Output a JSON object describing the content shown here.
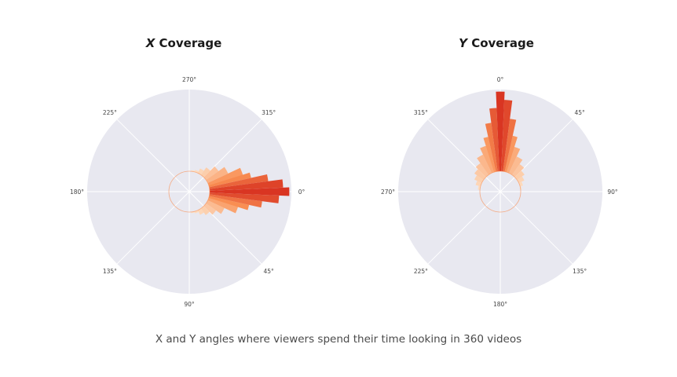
{
  "colors": {
    "plot_background": "#e8e8f0",
    "gridline": "#ffffff",
    "low": "#fde0c5",
    "mid": "#f98e52",
    "high": "#d7301f"
  },
  "caption": "X and Y angles where viewers spend their time looking in 360 videos",
  "chart_data": [
    {
      "type": "polar-bar",
      "title_axis": "X",
      "title_rest": " Coverage",
      "tick_labels": [
        "0°",
        "45°",
        "90°",
        "135°",
        "180°",
        "225°",
        "270°",
        "315°"
      ],
      "tick_angles_deg": [
        0,
        45,
        90,
        135,
        180,
        225,
        270,
        315
      ],
      "direction": "clockwise",
      "zero_location": "right",
      "grid": true,
      "radius_range": [
        0,
        1
      ],
      "base_radius": 0.2,
      "series": [
        {
          "angles_deg": [
            -90,
            -80,
            -70,
            -60,
            -50,
            -40,
            -30,
            -20,
            -15,
            -10,
            -5,
            0,
            5,
            10,
            15,
            20,
            30,
            40,
            50,
            60,
            70,
            80,
            90
          ],
          "values": [
            0.2,
            0.21,
            0.22,
            0.25,
            0.29,
            0.35,
            0.42,
            0.55,
            0.62,
            0.78,
            0.92,
            0.98,
            0.88,
            0.72,
            0.6,
            0.5,
            0.38,
            0.32,
            0.28,
            0.25,
            0.22,
            0.21,
            0.2
          ]
        }
      ]
    },
    {
      "type": "polar-bar",
      "title_axis": "Y",
      "title_rest": " Coverage",
      "tick_labels": [
        "0°",
        "45°",
        "90°",
        "135°",
        "180°",
        "225°",
        "270°",
        "315°"
      ],
      "tick_angles_deg": [
        0,
        45,
        90,
        135,
        180,
        225,
        270,
        315
      ],
      "direction": "clockwise",
      "zero_location": "top",
      "grid": true,
      "radius_range": [
        0,
        1
      ],
      "base_radius": 0.2,
      "series": [
        {
          "angles_deg": [
            -90,
            -80,
            -70,
            -60,
            -50,
            -40,
            -30,
            -20,
            -15,
            -10,
            -5,
            0,
            5,
            10,
            15,
            20,
            30,
            40,
            50,
            60,
            70,
            80,
            90
          ],
          "values": [
            0.2,
            0.22,
            0.25,
            0.28,
            0.31,
            0.34,
            0.4,
            0.47,
            0.55,
            0.68,
            0.82,
            0.98,
            0.9,
            0.72,
            0.56,
            0.46,
            0.38,
            0.33,
            0.29,
            0.26,
            0.23,
            0.21,
            0.2
          ]
        }
      ]
    }
  ]
}
